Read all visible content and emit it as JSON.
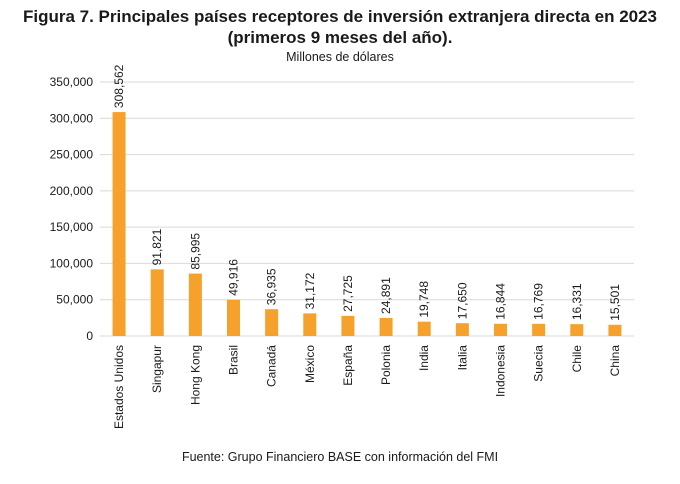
{
  "title_line1": "Figura 7. Principales países receptores de inversión extranjera directa en 2023",
  "title_line2": "(primeros 9 meses del año).",
  "subtitle": "Millones de dólares",
  "source": "Fuente: Grupo Financiero BASE con información del FMI",
  "colors": {
    "bar": "#f5a12c",
    "grid": "#d9d9d9"
  },
  "chart_data": {
    "type": "bar",
    "categories": [
      "Estados Unidos",
      "Singapur",
      "Hong Kong",
      "Brasil",
      "Canadá",
      "México",
      "España",
      "Polonia",
      "India",
      "Italia",
      "Indonesia",
      "Suecia",
      "Chile",
      "China"
    ],
    "values": [
      308562,
      91821,
      85995,
      49916,
      36935,
      31172,
      27725,
      24891,
      19748,
      17650,
      16844,
      16769,
      16331,
      15501
    ],
    "value_labels": [
      "308,562",
      "91,821",
      "85,995",
      "49,916",
      "36,935",
      "31,172",
      "27,725",
      "24,891",
      "19,748",
      "17,650",
      "16,844",
      "16,769",
      "16,331",
      "15,501"
    ],
    "yticks": [
      0,
      50000,
      100000,
      150000,
      200000,
      250000,
      300000,
      350000
    ],
    "ytick_labels": [
      "0",
      "50,000",
      "100,000",
      "150,000",
      "200,000",
      "250,000",
      "300,000",
      "350,000"
    ],
    "ylim": [
      0,
      350000
    ],
    "grid": true,
    "legend": "none"
  }
}
